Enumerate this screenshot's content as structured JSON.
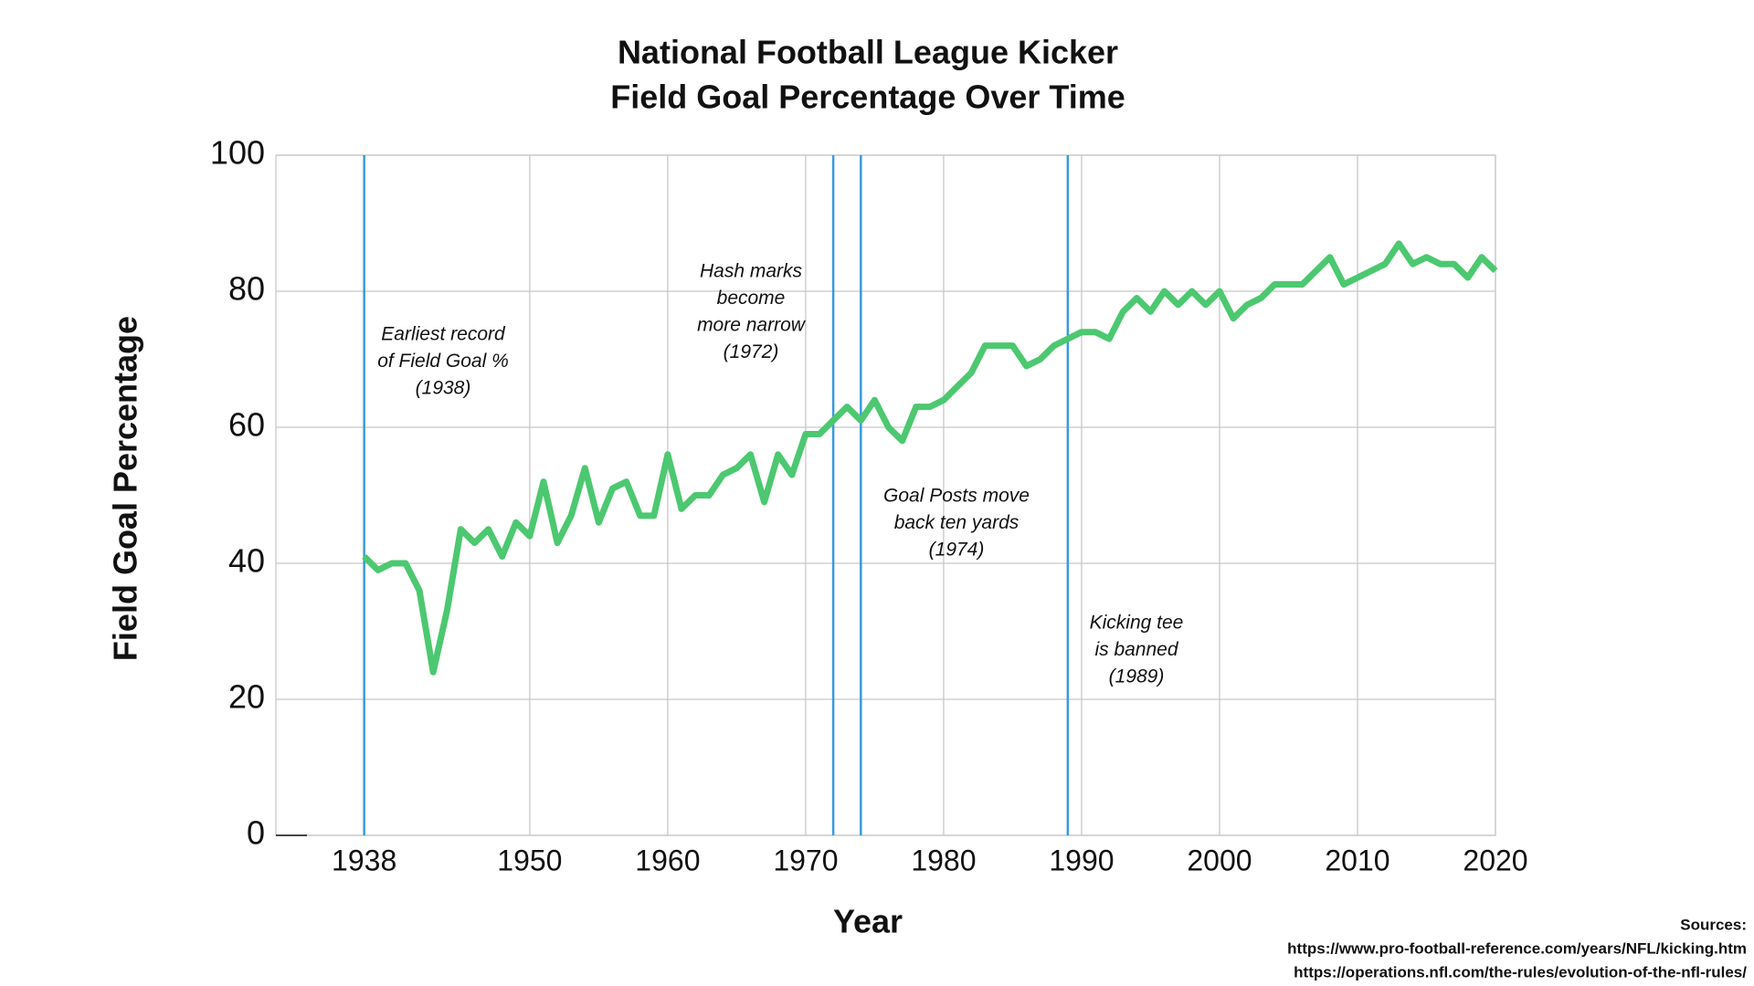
{
  "chart_data": {
    "type": "line",
    "title": [
      "National Football League Kicker",
      "Field Goal Percentage Over Time"
    ],
    "x_label": "Year",
    "y_label": "Field Goal Percentage",
    "x": [
      1938,
      1939,
      1940,
      1941,
      1942,
      1943,
      1944,
      1945,
      1946,
      1947,
      1948,
      1949,
      1950,
      1951,
      1952,
      1953,
      1954,
      1955,
      1956,
      1957,
      1958,
      1959,
      1960,
      1961,
      1962,
      1963,
      1964,
      1965,
      1966,
      1967,
      1968,
      1969,
      1970,
      1971,
      1972,
      1973,
      1974,
      1975,
      1976,
      1977,
      1978,
      1979,
      1980,
      1981,
      1982,
      1983,
      1984,
      1985,
      1986,
      1987,
      1988,
      1989,
      1990,
      1991,
      1992,
      1993,
      1994,
      1995,
      1996,
      1997,
      1998,
      1999,
      2000,
      2001,
      2002,
      2003,
      2004,
      2005,
      2006,
      2007,
      2008,
      2009,
      2010,
      2011,
      2012,
      2013,
      2014,
      2015,
      2016,
      2017,
      2018,
      2019,
      2020
    ],
    "series": [
      {
        "name": "Field Goal Percentage",
        "color": "#4cc870",
        "values": [
          41,
          39,
          40,
          40,
          36,
          24,
          33,
          45,
          43,
          45,
          41,
          46,
          44,
          52,
          43,
          47,
          54,
          46,
          51,
          52,
          47,
          47,
          56,
          48,
          50,
          50,
          53,
          54,
          56,
          49,
          56,
          53,
          59,
          59,
          61,
          63,
          61,
          64,
          60,
          58,
          63,
          63,
          64,
          66,
          68,
          72,
          72,
          72,
          69,
          70,
          72,
          73,
          74,
          74,
          73,
          77,
          79,
          77,
          80,
          78,
          80,
          78,
          80,
          76,
          78,
          79,
          81,
          81,
          81,
          83,
          85,
          81,
          82,
          83,
          84,
          87,
          84,
          85,
          84,
          84,
          82,
          85,
          83
        ]
      }
    ],
    "xlim": [
      1931.6,
      2020
    ],
    "xticks": [
      1938,
      1950,
      1960,
      1970,
      1980,
      1990,
      2000,
      2010,
      2020
    ],
    "ylim": [
      0,
      100
    ],
    "yticks": [
      0,
      20,
      40,
      60,
      80,
      100
    ],
    "grid": true,
    "events": [
      {
        "x": 1938,
        "color": "#3a9ad9",
        "label": [
          "Earliest record",
          "of Field Goal %",
          "(1938)"
        ]
      },
      {
        "x": 1972,
        "color": "#3a9ad9",
        "label": [
          "Hash marks",
          "become",
          "more narrow",
          "(1972)"
        ]
      },
      {
        "x": 1974,
        "color": "#3a9ad9",
        "label": [
          "Goal Posts move",
          "back ten yards",
          "(1974)"
        ]
      },
      {
        "x": 1989,
        "color": "#3a9ad9",
        "label": [
          "Kicking tee",
          "is banned",
          "(1989)"
        ]
      }
    ],
    "sources": [
      "Sources:",
      "https://www.pro-football-reference.com/years/NFL/kicking.htm",
      "https://operations.nfl.com/the-rules/evolution-of-the-nfl-rules/"
    ]
  }
}
